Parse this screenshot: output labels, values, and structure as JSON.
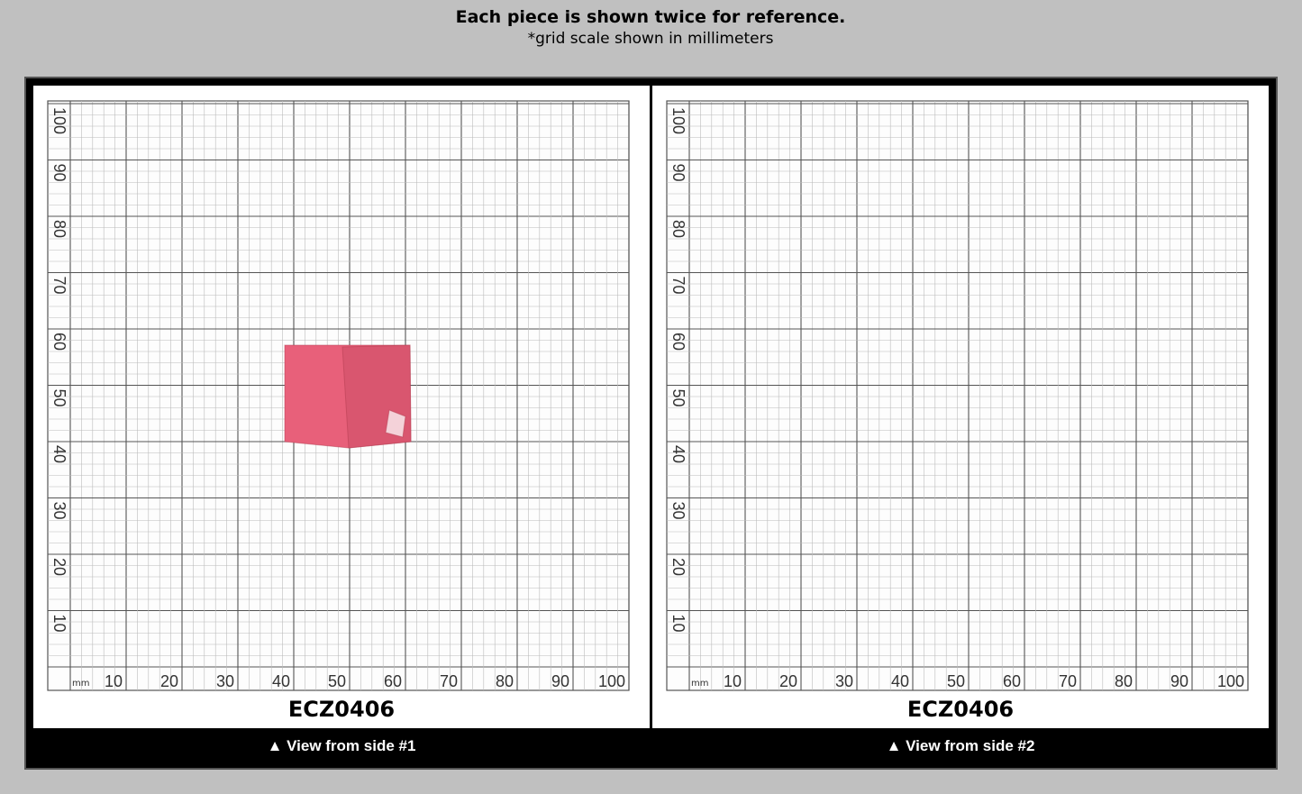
{
  "header": {
    "title": "Each piece is shown twice for reference.",
    "subtitle": "*grid scale shown in millimeters"
  },
  "panels": [
    {
      "code": "ECZ0406",
      "caption": "▲ View from side #1",
      "unit": "mm",
      "x_labels": [
        10,
        20,
        30,
        40,
        50,
        60,
        70,
        80,
        90,
        100
      ],
      "y_labels": [
        10,
        20,
        30,
        40,
        50,
        60,
        70,
        80,
        90,
        100
      ]
    },
    {
      "code": "ECZ0406",
      "caption": "▲ View from side #2",
      "unit": "mm",
      "x_labels": [
        10,
        20,
        30,
        40,
        50,
        60,
        70,
        80,
        90,
        100
      ],
      "y_labels": [
        10,
        20,
        30,
        40,
        50,
        60,
        70,
        80,
        90,
        100
      ]
    }
  ]
}
